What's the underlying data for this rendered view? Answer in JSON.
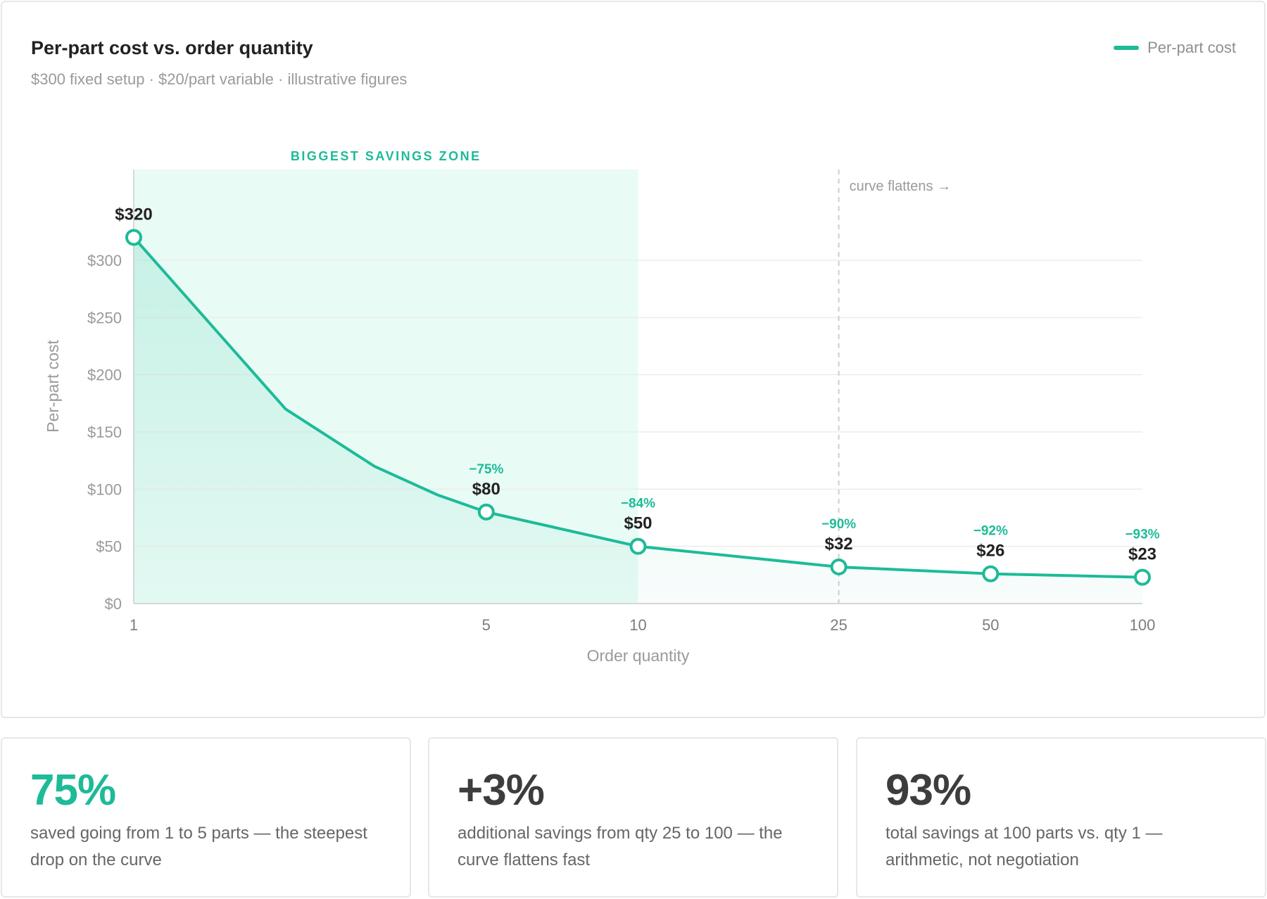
{
  "chart": {
    "title": "Per-part cost vs. order quantity",
    "subtitle": "$300 fixed setup · $20/part variable · illustrative figures",
    "legend_label": "Per-part cost",
    "zone_label": "BIGGEST SAVINGS ZONE",
    "flatten_label": "curve flattens →",
    "colors": {
      "accent": "#1dbb98",
      "zone": "#e8fbf5",
      "grid": "#ececec",
      "axis_text": "#9a9a9a"
    }
  },
  "chart_data": {
    "type": "line",
    "x_scale": "log",
    "xlabel": "Order quantity",
    "ylabel": "Per-part cost",
    "xlim": [
      1,
      100
    ],
    "ylim": [
      0,
      320
    ],
    "y_ticks": [
      0,
      50,
      100,
      150,
      200,
      250,
      300
    ],
    "y_tick_labels": [
      "$0",
      "$50",
      "$100",
      "$150",
      "$200",
      "$250",
      "$300"
    ],
    "x_ticks": [
      1,
      5,
      10,
      25,
      50,
      100
    ],
    "x_tick_labels": [
      "1",
      "5",
      "10",
      "25",
      "50",
      "100"
    ],
    "grid": "horizontal",
    "legend_position": "top-right",
    "series": [
      {
        "name": "Per-part cost",
        "x": [
          1,
          2,
          3,
          4,
          5,
          10,
          25,
          50,
          100
        ],
        "y": [
          320,
          170,
          120,
          95,
          80,
          50,
          32,
          26,
          23
        ]
      }
    ],
    "markers": [
      {
        "x": 1,
        "y": 320,
        "label": "$320",
        "change": ""
      },
      {
        "x": 5,
        "y": 80,
        "label": "$80",
        "change": "−75%"
      },
      {
        "x": 10,
        "y": 50,
        "label": "$50",
        "change": "−84%"
      },
      {
        "x": 25,
        "y": 32,
        "label": "$32",
        "change": "−90%"
      },
      {
        "x": 50,
        "y": 26,
        "label": "$26",
        "change": "−92%"
      },
      {
        "x": 100,
        "y": 23,
        "label": "$23",
        "change": "−93%"
      }
    ],
    "highlight_zone": {
      "x_from": 1,
      "x_to": 10
    },
    "reference_line_x": 25
  },
  "stats": [
    {
      "value": "75%",
      "description": "saved going from 1 to 5 parts — the steepest drop on the curve"
    },
    {
      "value": "+3%",
      "description": "additional savings from qty 25 to 100 — the curve flattens fast"
    },
    {
      "value": "93%",
      "description": "total savings at 100 parts vs. qty 1 — arithmetic, not negotiation"
    }
  ]
}
